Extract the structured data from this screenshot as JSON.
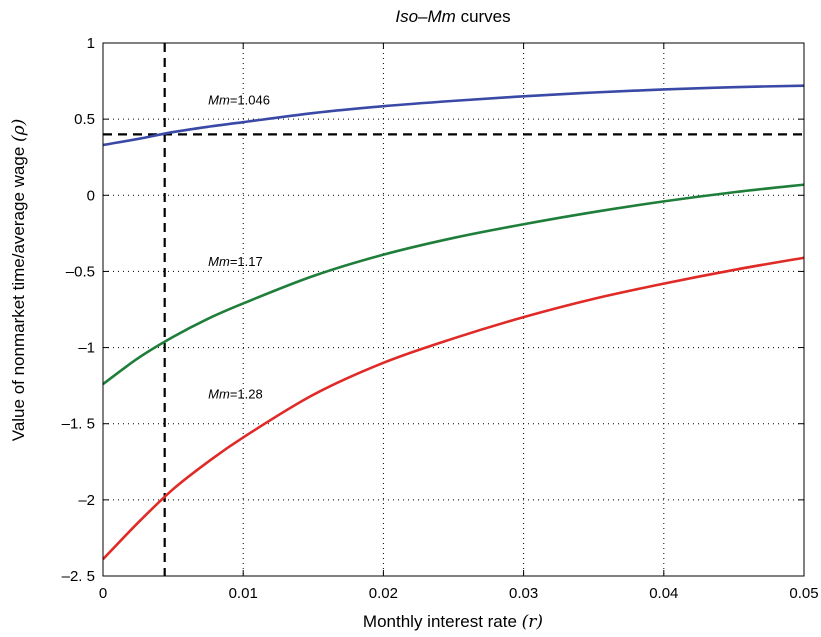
{
  "chart_data": {
    "type": "line",
    "title_main": "Iso",
    "title_dash": "–",
    "title_italic2": "Mm",
    "title_rest": " curves",
    "xlabel": "Monthly interest rate ",
    "xlabel_symbol": "(r)",
    "ylabel": "Value of nonmarket time/average wage ",
    "ylabel_symbol": "(ρ)",
    "xlim": [
      0,
      0.05
    ],
    "ylim": [
      -2.5,
      1
    ],
    "x_ticks": [
      0,
      0.01,
      0.02,
      0.03,
      0.04,
      0.05
    ],
    "x_tick_labels": [
      "0",
      "0.01",
      "0.02",
      "0.03",
      "0.04",
      "0.05"
    ],
    "y_ticks": [
      1,
      0.5,
      0,
      -0.5,
      -1,
      -1.5,
      -2,
      -2.5
    ],
    "y_tick_labels": [
      "1",
      "0.5",
      "0",
      "–0.5",
      "–1",
      "–1. 5",
      "–2",
      "–2. 5"
    ],
    "grid": true,
    "reference_lines": {
      "vertical_x": 0.0044,
      "horizontal_y": 0.4
    },
    "series": [
      {
        "label_prefix": "Mm",
        "label_value": "=1.046",
        "color": "#3a49a6",
        "x": [
          0,
          0.0025,
          0.005,
          0.0075,
          0.01,
          0.015,
          0.02,
          0.025,
          0.03,
          0.035,
          0.04,
          0.045,
          0.05
        ],
        "y": [
          0.33,
          0.37,
          0.415,
          0.45,
          0.48,
          0.54,
          0.585,
          0.62,
          0.65,
          0.675,
          0.695,
          0.71,
          0.72
        ]
      },
      {
        "label_prefix": "Mm",
        "label_value": "=1.17",
        "color": "#1e7e3a",
        "x": [
          0,
          0.0025,
          0.005,
          0.0075,
          0.01,
          0.015,
          0.02,
          0.025,
          0.03,
          0.035,
          0.04,
          0.045,
          0.05
        ],
        "y": [
          -1.24,
          -1.07,
          -0.93,
          -0.81,
          -0.71,
          -0.53,
          -0.39,
          -0.28,
          -0.19,
          -0.11,
          -0.04,
          0.02,
          0.07
        ]
      },
      {
        "label_prefix": "Mm",
        "label_value": "=1.28",
        "color": "#e02a27",
        "x": [
          0,
          0.0025,
          0.005,
          0.0075,
          0.01,
          0.015,
          0.02,
          0.025,
          0.03,
          0.035,
          0.04,
          0.045,
          0.05
        ],
        "y": [
          -2.39,
          -2.15,
          -1.93,
          -1.75,
          -1.59,
          -1.31,
          -1.1,
          -0.94,
          -0.8,
          -0.68,
          -0.58,
          -0.49,
          -0.41
        ]
      }
    ],
    "annotation_positions": [
      {
        "x": 0.0075,
        "y": 0.63
      },
      {
        "x": 0.0075,
        "y": -0.43
      },
      {
        "x": 0.0075,
        "y": -1.3
      }
    ]
  }
}
